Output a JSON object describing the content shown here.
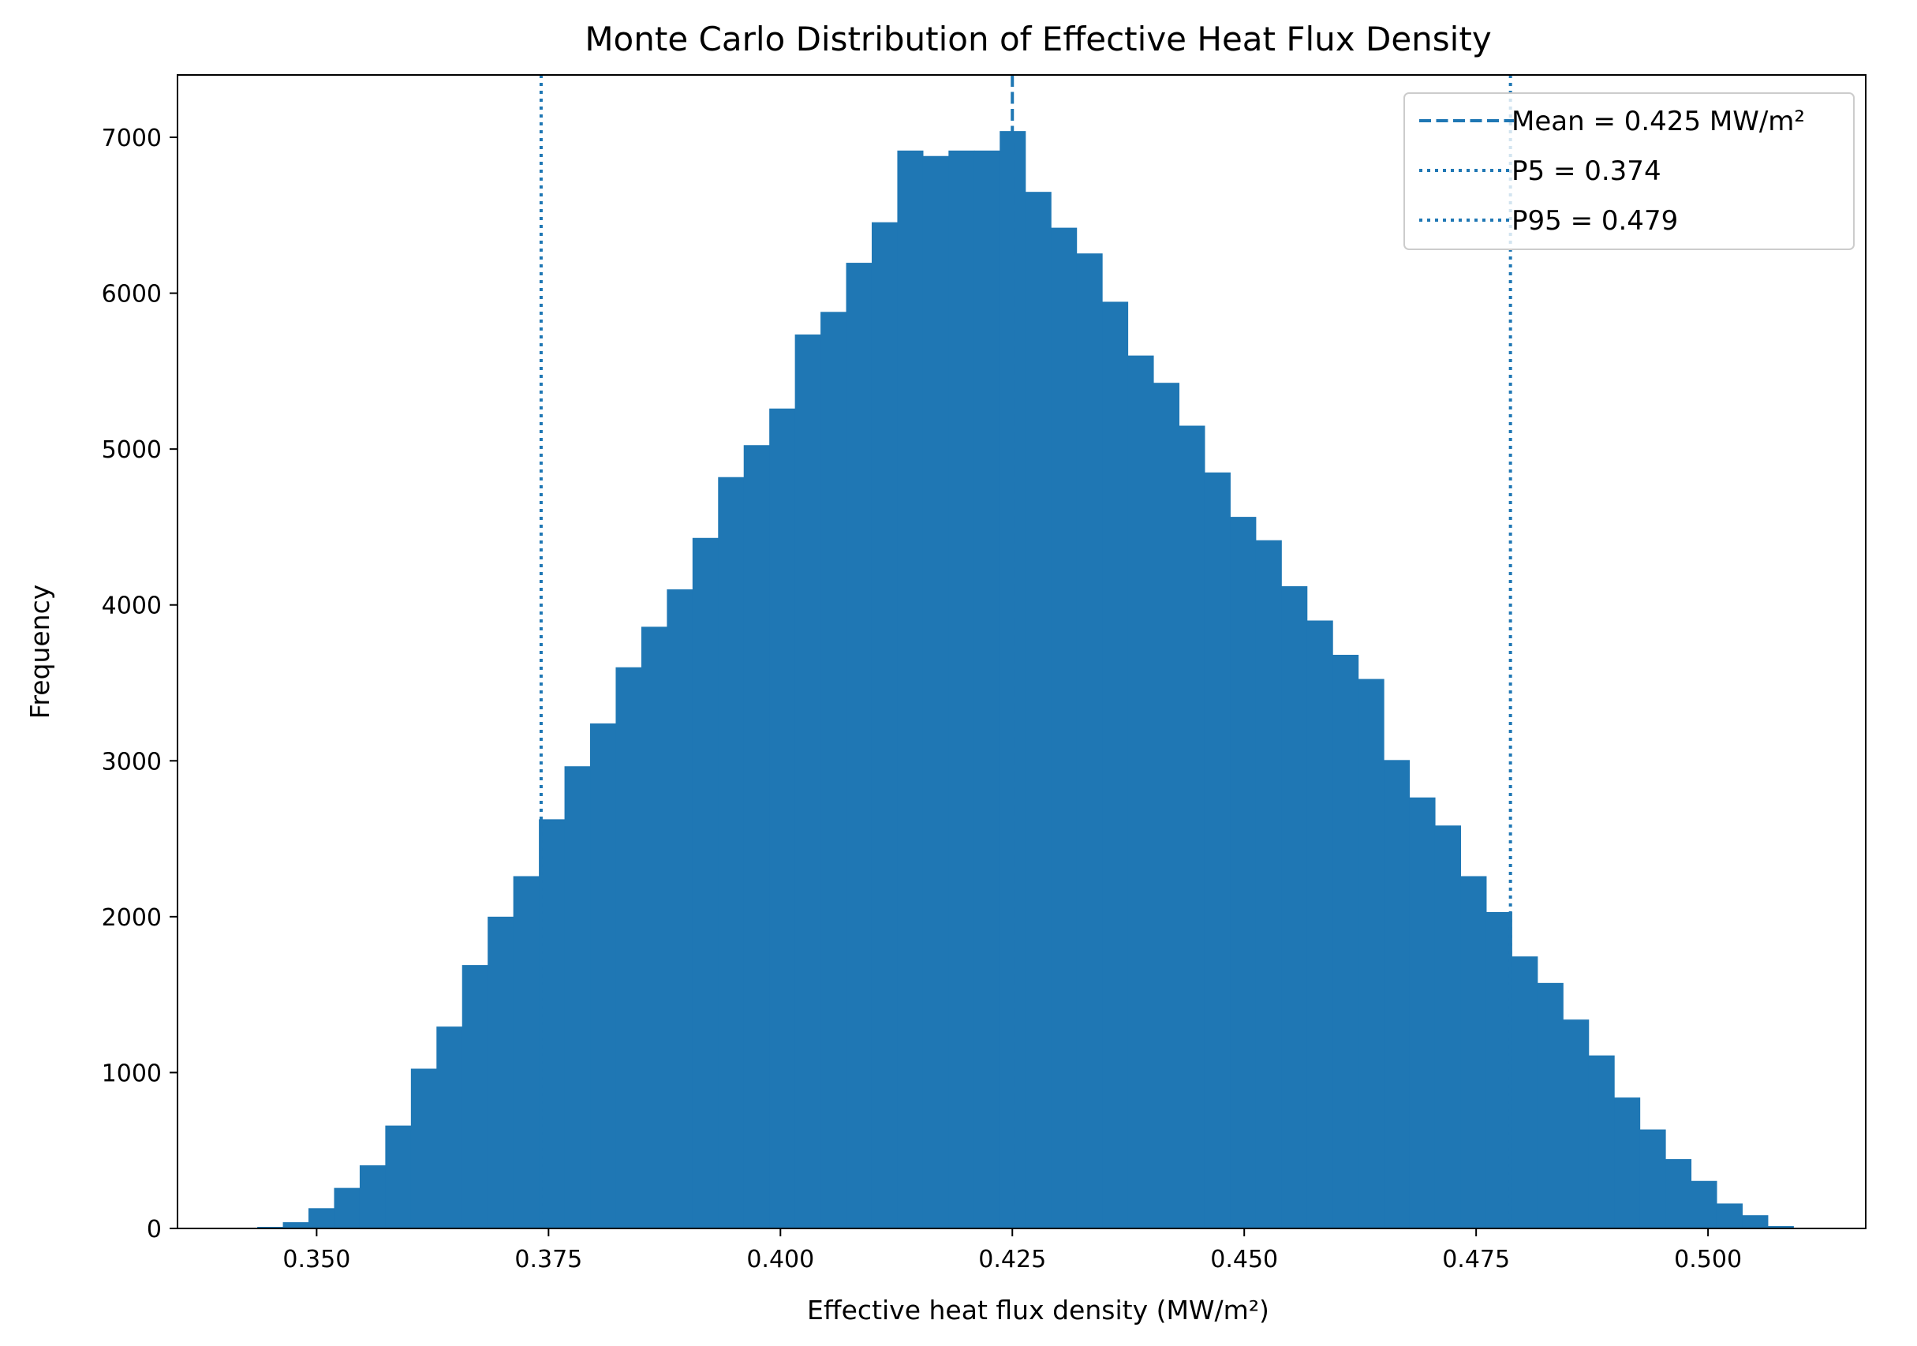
{
  "chart_data": {
    "type": "bar",
    "title": "Monte Carlo Distribution of Effective Heat Flux Density",
    "xlabel": "Effective heat flux density (MW/m²)",
    "ylabel": "Frequency",
    "xlim": [
      0.335,
      0.517
    ],
    "ylim": [
      0,
      7400
    ],
    "xticks": [
      0.35,
      0.375,
      0.4,
      0.425,
      0.45,
      0.475,
      0.5
    ],
    "xtick_labels": [
      "0.350",
      "0.375",
      "0.400",
      "0.425",
      "0.450",
      "0.475",
      "0.500"
    ],
    "yticks": [
      0,
      1000,
      2000,
      3000,
      4000,
      5000,
      6000,
      7000
    ],
    "ytick_labels": [
      "0",
      "1000",
      "2000",
      "3000",
      "4000",
      "5000",
      "6000",
      "7000"
    ],
    "grid": false,
    "legend_position": "top-right",
    "bin_start": 0.3436,
    "bin_width": 0.00276,
    "values": [
      10,
      40,
      130,
      260,
      405,
      660,
      1025,
      1295,
      1690,
      2000,
      2260,
      2625,
      2965,
      3240,
      3600,
      3860,
      4100,
      4430,
      4820,
      5025,
      5260,
      5735,
      5880,
      6195,
      6455,
      6915,
      6880,
      6915,
      6915,
      7040,
      6650,
      6420,
      6255,
      5945,
      5600,
      5425,
      5150,
      4850,
      4565,
      4415,
      4120,
      3900,
      3680,
      3525,
      3005,
      2765,
      2585,
      2260,
      2030,
      1745,
      1575,
      1340,
      1110,
      840,
      635,
      445,
      305,
      160,
      85,
      15
    ],
    "bar_color": "#1f77b4",
    "reference_lines": [
      {
        "label": "Mean = 0.425 MW/m²",
        "x": 0.425,
        "style": "dashed",
        "color": "#1f77b4"
      },
      {
        "label": "P5 = 0.374",
        "x": 0.3742,
        "style": "dotted",
        "color": "#1f77b4"
      },
      {
        "label": "P95 = 0.479",
        "x": 0.4787,
        "style": "dotted",
        "color": "#1f77b4"
      }
    ]
  }
}
